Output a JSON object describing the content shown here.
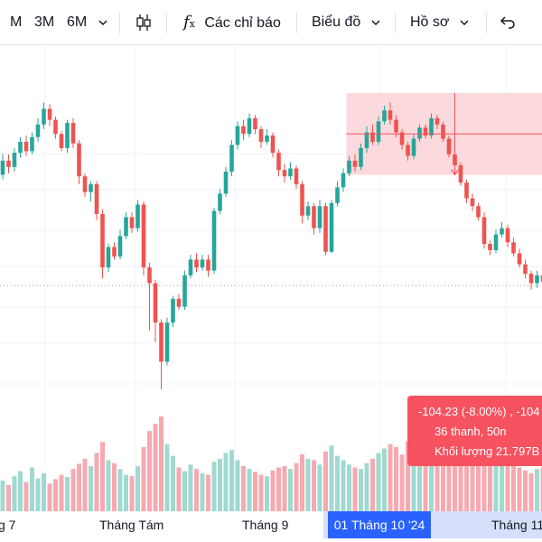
{
  "toolbar": {
    "periods": [
      "M",
      "3M",
      "6M"
    ],
    "indicators_label": "Các chỉ báo",
    "chart_label": "Biểu đồ",
    "profile_label": "Hồ sơ"
  },
  "colors": {
    "up": "#26a69a",
    "down": "#ef5350",
    "up_volume": "#9fd9cf",
    "down_volume": "#f7a9b1",
    "selection": "#fcd9dc",
    "selection_border": "#f7525f",
    "date_highlight": "#2962ff"
  },
  "x_axis": {
    "labels": [
      "g 7",
      "Tháng Tám",
      "Tháng 9",
      "Tháng 11"
    ],
    "highlighted_date": "01 Tháng 10 '24"
  },
  "measure_tooltip": {
    "line1": "-104.23 (-8.00%) , -104",
    "line2": "36 thanh, 50n",
    "line3": "Khối lượng 21.797B"
  },
  "chart_data": {
    "type": "candlestick",
    "candles": [
      [
        1198,
        1216,
        1225,
        1192
      ],
      [
        1216,
        1208,
        1224,
        1200
      ],
      [
        1208,
        1226,
        1232,
        1202
      ],
      [
        1226,
        1240,
        1246,
        1220
      ],
      [
        1240,
        1228,
        1248,
        1222
      ],
      [
        1228,
        1246,
        1252,
        1224
      ],
      [
        1246,
        1262,
        1270,
        1240
      ],
      [
        1262,
        1282,
        1290,
        1256
      ],
      [
        1282,
        1268,
        1288,
        1260
      ],
      [
        1268,
        1250,
        1272,
        1244
      ],
      [
        1250,
        1232,
        1254,
        1228
      ],
      [
        1232,
        1264,
        1268,
        1226
      ],
      [
        1264,
        1238,
        1270,
        1232
      ],
      [
        1238,
        1196,
        1242,
        1186
      ],
      [
        1196,
        1176,
        1200,
        1170
      ],
      [
        1176,
        1186,
        1190,
        1164
      ],
      [
        1186,
        1148,
        1190,
        1140
      ],
      [
        1148,
        1080,
        1154,
        1066
      ],
      [
        1080,
        1106,
        1110,
        1074
      ],
      [
        1106,
        1094,
        1112,
        1090
      ],
      [
        1094,
        1120,
        1128,
        1090
      ],
      [
        1120,
        1144,
        1150,
        1116
      ],
      [
        1144,
        1130,
        1150,
        1124
      ],
      [
        1130,
        1160,
        1166,
        1126
      ],
      [
        1160,
        1080,
        1164,
        1070
      ],
      [
        1080,
        1060,
        1086,
        1000
      ],
      [
        1060,
        1010,
        1064,
        985
      ],
      [
        1010,
        960,
        1014,
        925
      ],
      [
        960,
        1010,
        1016,
        955
      ],
      [
        1010,
        1040,
        1044,
        1004
      ],
      [
        1040,
        1030,
        1046,
        1026
      ],
      [
        1030,
        1070,
        1076,
        1026
      ],
      [
        1070,
        1090,
        1096,
        1066
      ],
      [
        1090,
        1080,
        1098,
        1074
      ],
      [
        1080,
        1090,
        1096,
        1076
      ],
      [
        1090,
        1076,
        1096,
        1068
      ],
      [
        1076,
        1152,
        1156,
        1072
      ],
      [
        1152,
        1174,
        1180,
        1148
      ],
      [
        1174,
        1202,
        1208,
        1170
      ],
      [
        1202,
        1236,
        1242,
        1196
      ],
      [
        1236,
        1260,
        1266,
        1230
      ],
      [
        1260,
        1250,
        1268,
        1242
      ],
      [
        1250,
        1270,
        1276,
        1246
      ],
      [
        1270,
        1256,
        1274,
        1250
      ],
      [
        1256,
        1240,
        1260,
        1232
      ],
      [
        1240,
        1248,
        1256,
        1236
      ],
      [
        1248,
        1226,
        1252,
        1220
      ],
      [
        1226,
        1204,
        1230,
        1196
      ],
      [
        1204,
        1196,
        1212,
        1188
      ],
      [
        1196,
        1206,
        1214,
        1192
      ],
      [
        1206,
        1186,
        1210,
        1180
      ],
      [
        1186,
        1146,
        1190,
        1136
      ],
      [
        1146,
        1158,
        1164,
        1140
      ],
      [
        1158,
        1130,
        1162,
        1122
      ],
      [
        1130,
        1158,
        1166,
        1124
      ],
      [
        1158,
        1100,
        1162,
        1096
      ],
      [
        1100,
        1162,
        1166,
        1098
      ],
      [
        1162,
        1182,
        1190,
        1158
      ],
      [
        1182,
        1200,
        1206,
        1176
      ],
      [
        1200,
        1216,
        1222,
        1196
      ],
      [
        1216,
        1208,
        1224,
        1202
      ],
      [
        1208,
        1232,
        1238,
        1204
      ],
      [
        1232,
        1252,
        1260,
        1226
      ],
      [
        1252,
        1240,
        1262,
        1236
      ],
      [
        1240,
        1266,
        1272,
        1236
      ],
      [
        1266,
        1280,
        1286,
        1262
      ],
      [
        1280,
        1268,
        1290,
        1262
      ],
      [
        1268,
        1252,
        1274,
        1246
      ],
      [
        1252,
        1236,
        1256,
        1230
      ],
      [
        1236,
        1222,
        1240,
        1216
      ],
      [
        1222,
        1244,
        1250,
        1218
      ],
      [
        1244,
        1258,
        1262,
        1240
      ],
      [
        1258,
        1248,
        1262,
        1244
      ],
      [
        1248,
        1270,
        1276,
        1244
      ],
      [
        1270,
        1262,
        1274,
        1256
      ],
      [
        1262,
        1244,
        1266,
        1240
      ],
      [
        1244,
        1224,
        1248,
        1220
      ],
      [
        1224,
        1210,
        1228,
        1204
      ],
      [
        1210,
        1188,
        1214,
        1184
      ],
      [
        1188,
        1168,
        1192,
        1162
      ],
      [
        1168,
        1158,
        1174,
        1152
      ],
      [
        1158,
        1144,
        1162,
        1140
      ],
      [
        1144,
        1110,
        1150,
        1104
      ],
      [
        1110,
        1102,
        1114,
        1096
      ],
      [
        1102,
        1122,
        1128,
        1098
      ],
      [
        1122,
        1130,
        1138,
        1118
      ],
      [
        1130,
        1112,
        1134,
        1106
      ],
      [
        1112,
        1098,
        1118,
        1094
      ],
      [
        1098,
        1084,
        1104,
        1080
      ],
      [
        1084,
        1072,
        1090,
        1066
      ],
      [
        1072,
        1060,
        1076,
        1052
      ],
      [
        1060,
        1070,
        1076,
        1054
      ],
      [
        1070,
        1062,
        1078,
        1058
      ],
      [
        1062,
        1070,
        1076,
        1056
      ]
    ],
    "volumes": [
      42,
      36,
      48,
      55,
      40,
      60,
      45,
      52,
      38,
      44,
      50,
      47,
      58,
      65,
      72,
      62,
      80,
      95,
      70,
      66,
      58,
      50,
      48,
      62,
      88,
      110,
      120,
      130,
      92,
      76,
      60,
      55,
      64,
      58,
      52,
      50,
      68,
      72,
      80,
      84,
      70,
      62,
      58,
      54,
      50,
      48,
      56,
      60,
      62,
      58,
      66,
      78,
      72,
      70,
      64,
      82,
      90,
      76,
      70,
      64,
      60,
      58,
      66,
      72,
      80,
      86,
      92,
      88,
      78,
      96,
      84,
      90,
      100,
      110,
      96,
      104,
      92,
      86,
      80,
      76,
      72,
      68,
      74,
      70,
      66,
      72,
      70,
      64,
      60,
      56,
      52,
      58,
      60,
      56
    ],
    "price_range": [
      880,
      1340
    ],
    "measure_start_index": 59,
    "measure_end_index": 95,
    "selection_from_price": 1302,
    "selection_to_price": 1198
  }
}
